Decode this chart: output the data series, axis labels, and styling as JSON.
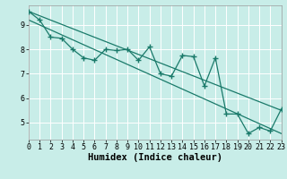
{
  "xlabel": "Humidex (Indice chaleur)",
  "bg_color": "#c8ede8",
  "line_color": "#1a7a6a",
  "grid_color": "#ffffff",
  "x_data": [
    0,
    1,
    2,
    3,
    4,
    5,
    6,
    7,
    8,
    9,
    10,
    11,
    12,
    13,
    14,
    15,
    16,
    17,
    18,
    19,
    20,
    21,
    22,
    23
  ],
  "y_data": [
    9.55,
    9.2,
    8.5,
    8.45,
    8.0,
    7.65,
    7.55,
    8.0,
    7.95,
    8.0,
    7.55,
    8.1,
    7.0,
    6.9,
    7.75,
    7.7,
    6.5,
    7.65,
    5.35,
    5.35,
    4.55,
    4.8,
    4.65,
    5.55
  ],
  "reg_line1_x": [
    0,
    23
  ],
  "reg_line1_y": [
    9.55,
    5.5
  ],
  "reg_line2_x": [
    0,
    23
  ],
  "reg_line2_y": [
    9.2,
    4.55
  ],
  "xlim": [
    0,
    23
  ],
  "ylim": [
    4.3,
    9.8
  ],
  "xticks": [
    0,
    1,
    2,
    3,
    4,
    5,
    6,
    7,
    8,
    9,
    10,
    11,
    12,
    13,
    14,
    15,
    16,
    17,
    18,
    19,
    20,
    21,
    22,
    23
  ],
  "yticks": [
    5,
    6,
    7,
    8,
    9
  ],
  "xlabel_fontsize": 7.5,
  "tick_fontsize": 6.0,
  "marker": "+",
  "markersize": 4,
  "markeredgewidth": 1.0,
  "linewidth": 0.9
}
